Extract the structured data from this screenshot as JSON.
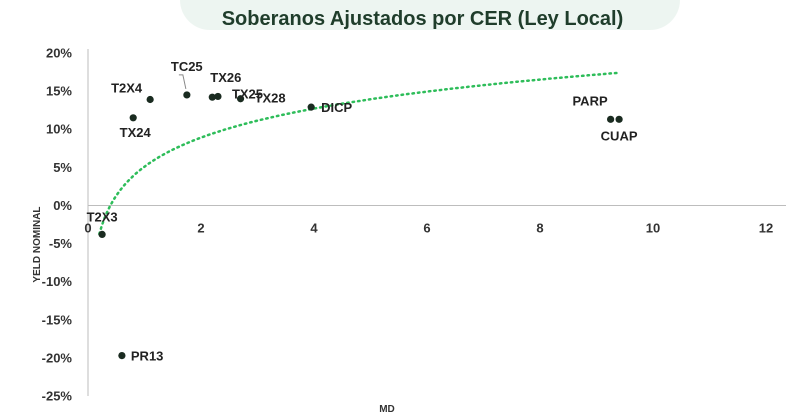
{
  "chart_data": {
    "type": "scatter",
    "title": "Soberanos Ajustados por CER (Ley Local)",
    "xlabel": "MD",
    "ylabel": "YELD NOMINAL",
    "xlim": [
      0,
      12
    ],
    "ylim": [
      -25,
      20
    ],
    "x_ticks": [
      0,
      2,
      4,
      6,
      8,
      10,
      12
    ],
    "y_ticks": [
      20,
      15,
      10,
      5,
      0,
      -5,
      -10,
      -15,
      -20,
      -25
    ],
    "y_tick_format": "percent",
    "grid": false,
    "legend": "none",
    "marker_color": "#1a2b20",
    "trendline": {
      "kind": "logarithmic",
      "style": "dotted",
      "color": "#2ebd5a",
      "x_range": [
        0.2,
        9.4
      ]
    },
    "points": [
      {
        "label": "T2X3",
        "x": 0.25,
        "y": -3.8
      },
      {
        "label": "TX24",
        "x": 0.8,
        "y": 11.5
      },
      {
        "label": "T2X4",
        "x": 1.1,
        "y": 13.9
      },
      {
        "label": "TC25",
        "x": 1.75,
        "y": 14.5
      },
      {
        "label": "TX26",
        "x": 2.2,
        "y": 14.2
      },
      {
        "label": "TX25",
        "x": 2.3,
        "y": 14.3
      },
      {
        "label": "TX28",
        "x": 2.7,
        "y": 14.0
      },
      {
        "label": "DICP",
        "x": 3.95,
        "y": 12.9
      },
      {
        "label": "PARP",
        "x": 9.25,
        "y": 11.3
      },
      {
        "label": "CUAP",
        "x": 9.4,
        "y": 11.3
      },
      {
        "label": "PR13",
        "x": 0.6,
        "y": -19.7
      }
    ]
  }
}
